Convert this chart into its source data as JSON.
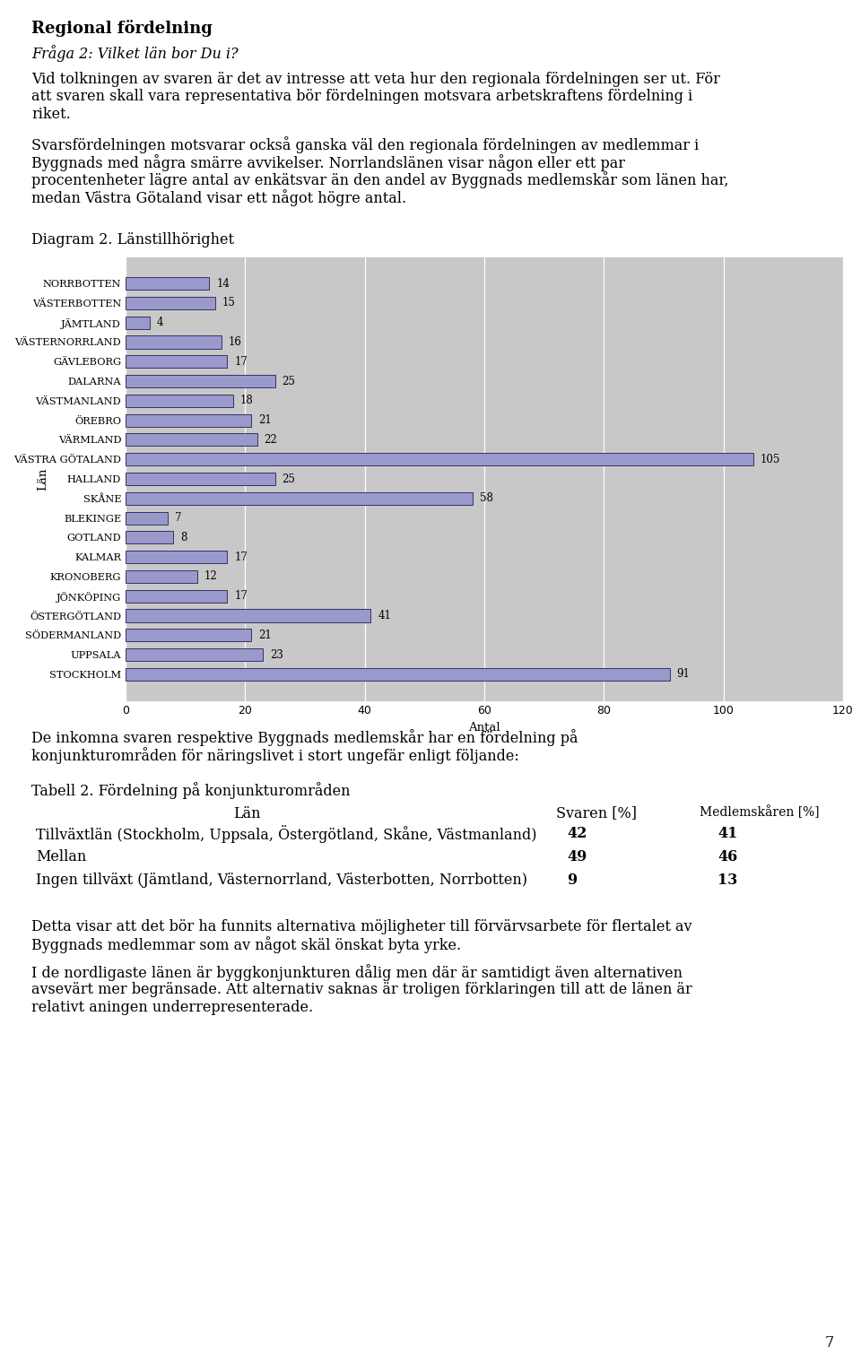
{
  "title": "Regional fördelning",
  "subtitle_italic": "Fråga 2: Vilket län bor Du i?",
  "para1_lines": [
    "Vid tolkningen av svaren är det av intresse att veta hur den regionala fördelningen ser ut. För",
    "att svaren skall vara representativa bör fördelningen motsvara arbetskraftens fördelning i",
    "riket."
  ],
  "para2_lines": [
    "Svarsfördelningen motsvarar också ganska väl den regionala fördelningen av medlemmar i",
    "Byggnads med några smärre avvikelser. Norrlandslänen visar någon eller ett par",
    "procentenheter lägre antal av enkätsvar än den andel av Byggnads medlemskår som länen har,",
    "medan Västra Götaland visar ett något högre antal."
  ],
  "diagram_title": "Diagram 2. Länstillhörighet",
  "chart_ylabel": "Län",
  "chart_xlabel": "Antal",
  "xlim": [
    0,
    120
  ],
  "xticks": [
    0,
    20,
    40,
    60,
    80,
    100,
    120
  ],
  "categories": [
    "NORRBOTTEN",
    "VÄSTERBOTTEN",
    "JÄMTLAND",
    "VÄSTERNORRLAND",
    "GÄVLEBORG",
    "DALARNA",
    "VÄSTMANLAND",
    "ÖREBRO",
    "VÄRMLAND",
    "VÄSTRA GÖTALAND",
    "HALLAND",
    "SKÅNE",
    "BLEKINGE",
    "GOTLAND",
    "KALMAR",
    "KRONOBERG",
    "JÖNKÖPING",
    "ÖSTERGÖTLAND",
    "SÖDERMANLAND",
    "UPPSALA",
    "STOCKHOLM"
  ],
  "values": [
    14,
    15,
    4,
    16,
    17,
    25,
    18,
    21,
    22,
    105,
    25,
    58,
    7,
    8,
    17,
    12,
    17,
    41,
    21,
    23,
    91
  ],
  "bar_color": "#9999CC",
  "bar_edge_color": "#333366",
  "plot_bg_color": "#C8C8C8",
  "para3_lines": [
    "De inkomna svaren respektive Byggnads medlemskår har en fördelning på",
    "konjunkturområden för näringslivet i stort ungefär enligt följande:"
  ],
  "table_title": "Tabell 2. Fördelning på konjunkturområden",
  "table_header_col1": "Län",
  "table_header_col2": "Svaren [%]",
  "table_header_col3": "Medlemskåren [%]",
  "table_rows": [
    [
      "Tillväxtlän (Stockholm, Uppsala, Östergötland, Skåne, Västmanland)",
      "42",
      "41"
    ],
    [
      "Mellan",
      "49",
      "46"
    ],
    [
      "Ingen tillväxt (Jämtland, Västernorrland, Västerbotten, Norrbotten)",
      "9",
      "13"
    ]
  ],
  "para4_lines": [
    "Detta visar att det bör ha funnits alternativa möjligheter till förvärvsarbete för flertalet av",
    "Byggnads medlemmar som av något skäl önskat byta yrke."
  ],
  "para5_lines": [
    "I de nordligaste länen är byggkonjunkturen dålig men där är samtidigt även alternativen",
    "avsevärt mer begränsade. Att alternativ saknas är troligen förklaringen till att de länen är",
    "relativt aningen underrepresenterade."
  ],
  "page_number": "7"
}
